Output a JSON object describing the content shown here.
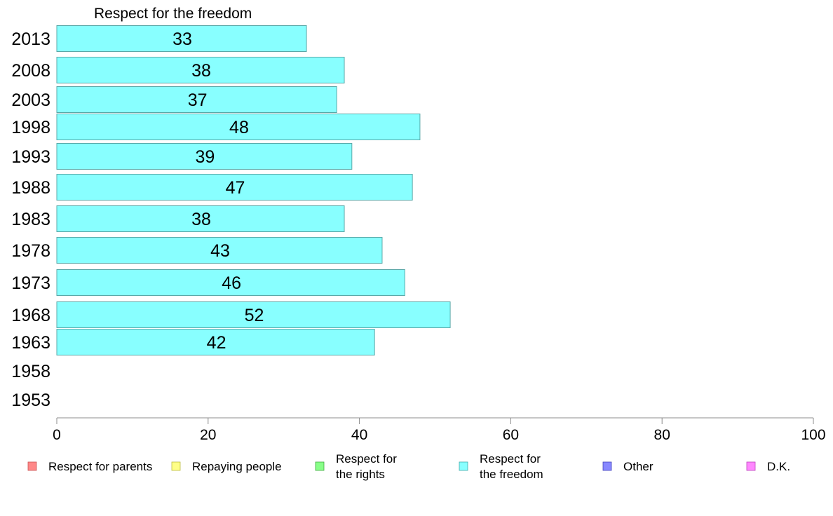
{
  "chart_data": {
    "type": "bar",
    "orientation": "horizontal",
    "title": "Respect for the freedom",
    "categories": [
      "2013",
      "2008",
      "2003",
      "1998",
      "1993",
      "1988",
      "1983",
      "1978",
      "1973",
      "1968",
      "1963",
      "1958",
      "1953"
    ],
    "series": [
      {
        "name": "Respect for the freedom",
        "color": "#88ffff",
        "values": [
          33,
          38,
          37,
          48,
          39,
          47,
          38,
          43,
          46,
          52,
          42,
          null,
          null
        ],
        "labels": [
          "33",
          "38",
          "37",
          "48",
          "39",
          "47",
          "38",
          "43",
          "46",
          "52",
          "42",
          "",
          ""
        ]
      }
    ],
    "xlim": [
      0,
      100
    ],
    "xticks": [
      "0",
      "20",
      "40",
      "60",
      "80",
      "100"
    ],
    "grid": false,
    "legend": {
      "placement": "bottom",
      "entries": [
        {
          "lines": [
            "Respect for parents"
          ],
          "color": "#ff8888",
          "border": "#cc5555"
        },
        {
          "lines": [
            "Repaying people"
          ],
          "color": "#ffff88",
          "border": "#bbbb44"
        },
        {
          "lines": [
            "Respect for",
            "the rights"
          ],
          "color": "#88ff88",
          "border": "#44aa44"
        },
        {
          "lines": [
            "Respect for",
            "the freedom"
          ],
          "color": "#88ffff",
          "border": "#44aaaa"
        },
        {
          "lines": [
            "Other"
          ],
          "color": "#8888ff",
          "border": "#4444bb"
        },
        {
          "lines": [
            "D.K."
          ],
          "color": "#ff88ff",
          "border": "#bb44bb"
        }
      ]
    }
  }
}
